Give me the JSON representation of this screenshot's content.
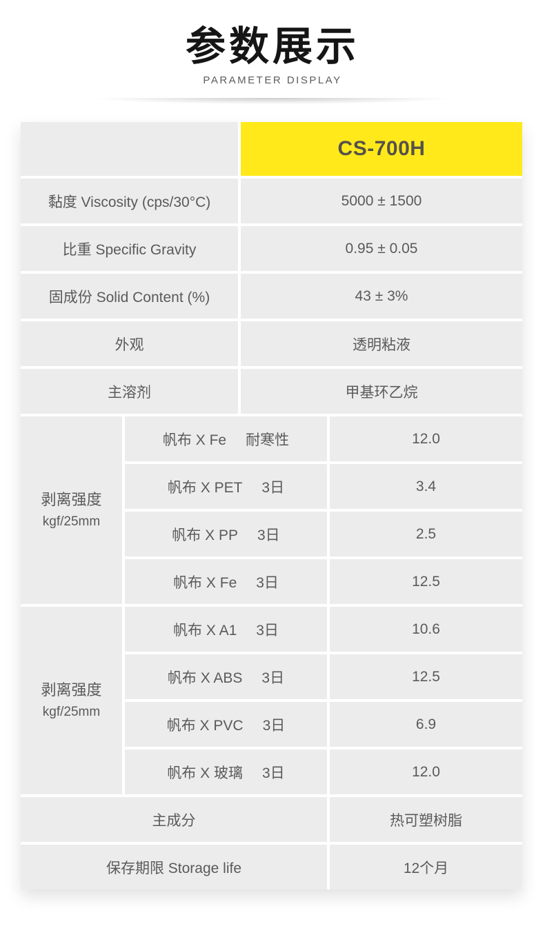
{
  "header": {
    "title_cn": "参数展示",
    "subtitle_en": "PARAMETER DISPLAY"
  },
  "colors": {
    "accent_yellow": "#ffe91a",
    "cell_gray": "#ececec",
    "text_gray": "#5a5a5a",
    "product_text": "#55514a"
  },
  "table": {
    "product_name": "CS-700H",
    "basic_rows": [
      {
        "label": "黏度 Viscosity (cps/30°C)",
        "value": "5000 ± 1500"
      },
      {
        "label": "比重 Specific Gravity",
        "value": "0.95 ± 0.05"
      },
      {
        "label": "固成份 Solid Content (%)",
        "value": "43 ± 3%"
      },
      {
        "label": "外观",
        "value": "透明粘液"
      },
      {
        "label": "主溶剂",
        "value": "甲基环乙烷"
      }
    ],
    "peel_groups": [
      {
        "label_line1": "剥离强度",
        "label_line2": "kgf/25mm",
        "rows": [
          {
            "name": "帆布 X Fe",
            "condition": "耐寒性",
            "value": "12.0"
          },
          {
            "name": "帆布 X PET",
            "condition": "3日",
            "value": "3.4"
          },
          {
            "name": "帆布 X PP",
            "condition": "3日",
            "value": "2.5"
          },
          {
            "name": "帆布 X Fe",
            "condition": "3日",
            "value": "12.5"
          }
        ]
      },
      {
        "label_line1": "剥离强度",
        "label_line2": "kgf/25mm",
        "rows": [
          {
            "name": "帆布 X A1",
            "condition": "3日",
            "value": "10.6"
          },
          {
            "name": "帆布 X ABS",
            "condition": "3日",
            "value": "12.5"
          },
          {
            "name": "帆布 X PVC",
            "condition": "3日",
            "value": "6.9"
          },
          {
            "name": "帆布 X 玻璃",
            "condition": "3日",
            "value": "12.0"
          }
        ]
      }
    ],
    "footer_rows": [
      {
        "label": "主成分",
        "value": "热可塑树脂"
      },
      {
        "label": "保存期限 Storage life",
        "value": "12个月"
      }
    ]
  }
}
